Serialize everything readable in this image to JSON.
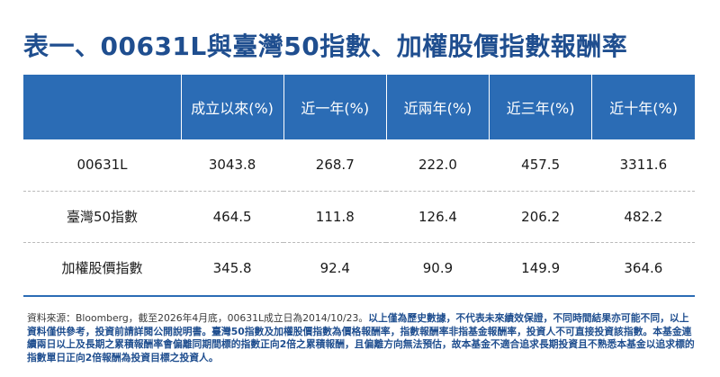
{
  "title": "表一、00631L與臺灣50指數、加權股價指數報酬率",
  "chart_data": {
    "type": "table",
    "columns": [
      "",
      "成立以來(%)",
      "近一年(%)",
      "近兩年(%)",
      "近三年(%)",
      "近十年(%)"
    ],
    "rows": [
      {
        "label": "00631L",
        "values": [
          "3043.8",
          "268.7",
          "222.0",
          "457.5",
          "3311.6"
        ]
      },
      {
        "label": "臺灣50指數",
        "values": [
          "464.5",
          "111.8",
          "126.4",
          "206.2",
          "482.2"
        ]
      },
      {
        "label": "加權股價指數",
        "values": [
          "345.8",
          "92.4",
          "90.9",
          "149.9",
          "364.6"
        ]
      }
    ]
  },
  "note": {
    "plain": "資料來源：Bloomberg，截至2026年4月底，00631L成立日為2014/10/23。",
    "highlight": "以上僅為歷史數據，不代表未來績效保證，不同時間結果亦可能不同，以上資料僅供參考，投資前請詳閱公開說明書。臺灣50指數及加權股價指數為價格報酬率，指數報酬率非指基金報酬率，投資人不可直接投資該指數。本基金連續兩日以上及長期之累積報酬率會偏離同期間標的指數正向2倍之累積報酬，且偏離方向無法預估，故本基金不適合追求長期投資且不熟悉本基金以追求標的指數單日正向2倍報酬為投資目標之投資人。"
  }
}
